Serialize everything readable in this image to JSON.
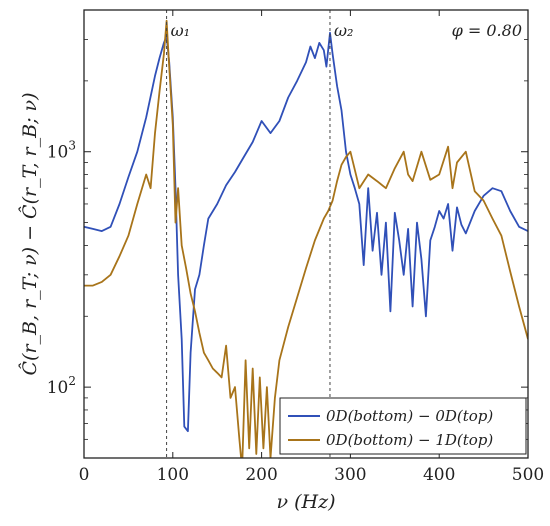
{
  "chart_data": {
    "type": "line",
    "title": "",
    "xlabel": "ν (Hz)",
    "ylabel": "Ĉ(r_B, r_T; ν) − Ĉ(r_T, r_B; ν)",
    "xlim": [
      0,
      500
    ],
    "ylim": [
      50,
      4000
    ],
    "yscale": "log",
    "grid": false,
    "legend_position": "bottom-right",
    "x_ticks": [
      "0",
      "100",
      "200",
      "300",
      "400",
      "500"
    ],
    "y_ticks": [
      {
        "value": 100,
        "base": "10",
        "exp": "2"
      },
      {
        "value": 1000,
        "base": "10",
        "exp": "3"
      }
    ],
    "annotations": [
      {
        "text": "ω₁",
        "x": 93,
        "kind": "vline"
      },
      {
        "text": "ω₂",
        "x": 277,
        "kind": "vline"
      },
      {
        "text": "φ = 0.80",
        "kind": "corner-text"
      }
    ],
    "series": [
      {
        "name": "0D(bottom) − 0D(top)",
        "color": "#3050b8",
        "x": [
          0,
          10,
          20,
          30,
          40,
          50,
          60,
          70,
          80,
          85,
          90,
          93,
          96,
          100,
          103,
          106,
          110,
          113,
          117,
          120,
          125,
          130,
          135,
          140,
          150,
          160,
          170,
          180,
          190,
          200,
          210,
          220,
          230,
          240,
          250,
          255,
          260,
          265,
          270,
          273,
          277,
          280,
          285,
          290,
          295,
          300,
          305,
          310,
          315,
          320,
          325,
          330,
          335,
          340,
          345,
          350,
          355,
          360,
          365,
          370,
          375,
          380,
          385,
          390,
          395,
          400,
          405,
          410,
          415,
          420,
          425,
          430,
          440,
          450,
          460,
          470,
          480,
          490,
          500
        ],
        "y": [
          480,
          470,
          460,
          480,
          600,
          780,
          1000,
          1400,
          2100,
          2500,
          2900,
          3100,
          2400,
          1400,
          700,
          300,
          160,
          68,
          65,
          140,
          260,
          300,
          400,
          520,
          600,
          720,
          820,
          950,
          1100,
          1350,
          1200,
          1350,
          1700,
          2000,
          2400,
          2800,
          2500,
          2900,
          2700,
          2300,
          3200,
          2600,
          1900,
          1500,
          1000,
          800,
          700,
          600,
          330,
          700,
          380,
          550,
          300,
          500,
          210,
          550,
          420,
          300,
          470,
          220,
          500,
          350,
          200,
          420,
          480,
          560,
          520,
          600,
          380,
          580,
          490,
          450,
          560,
          650,
          700,
          680,
          560,
          480,
          460
        ]
      },
      {
        "name": "0D(bottom) − 1D(top)",
        "color": "#a8741a",
        "x": [
          0,
          10,
          20,
          30,
          40,
          50,
          60,
          70,
          75,
          80,
          85,
          90,
          93,
          96,
          100,
          103,
          106,
          110,
          115,
          120,
          125,
          130,
          135,
          140,
          145,
          150,
          155,
          160,
          165,
          170,
          175,
          178,
          182,
          186,
          190,
          194,
          198,
          202,
          206,
          210,
          215,
          220,
          230,
          240,
          250,
          260,
          270,
          275,
          280,
          285,
          290,
          295,
          300,
          310,
          320,
          330,
          340,
          350,
          360,
          365,
          370,
          380,
          390,
          400,
          410,
          415,
          420,
          430,
          440,
          450,
          460,
          470,
          480,
          490,
          500
        ],
        "y": [
          270,
          270,
          280,
          300,
          360,
          440,
          600,
          800,
          700,
          1200,
          1800,
          2600,
          3600,
          2300,
          1300,
          500,
          700,
          400,
          320,
          250,
          210,
          170,
          140,
          130,
          120,
          115,
          110,
          150,
          90,
          100,
          60,
          45,
          130,
          55,
          120,
          52,
          110,
          55,
          100,
          50,
          90,
          130,
          180,
          240,
          320,
          420,
          520,
          560,
          620,
          750,
          880,
          950,
          1000,
          700,
          800,
          750,
          700,
          850,
          1000,
          800,
          750,
          1000,
          760,
          800,
          1050,
          700,
          900,
          1000,
          680,
          620,
          520,
          440,
          310,
          220,
          160
        ]
      }
    ]
  }
}
